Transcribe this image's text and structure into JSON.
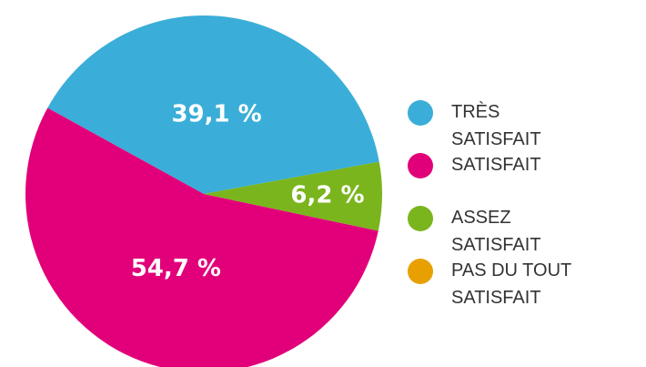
{
  "chart_data": {
    "type": "pie",
    "categories": [
      "TRÈS SATISFAIT",
      "SATISFAIT",
      "ASSEZ SATISFAIT",
      "PAS DU TOUT SATISFAIT"
    ],
    "values": [
      39.1,
      54.7,
      6.2,
      0
    ],
    "value_labels": [
      "39,1 %",
      "54,7 %",
      "6,2 %",
      null
    ],
    "colors": [
      "#3aaed8",
      "#e2007a",
      "#7ab51d",
      "#e8a000"
    ],
    "legend": "right"
  }
}
